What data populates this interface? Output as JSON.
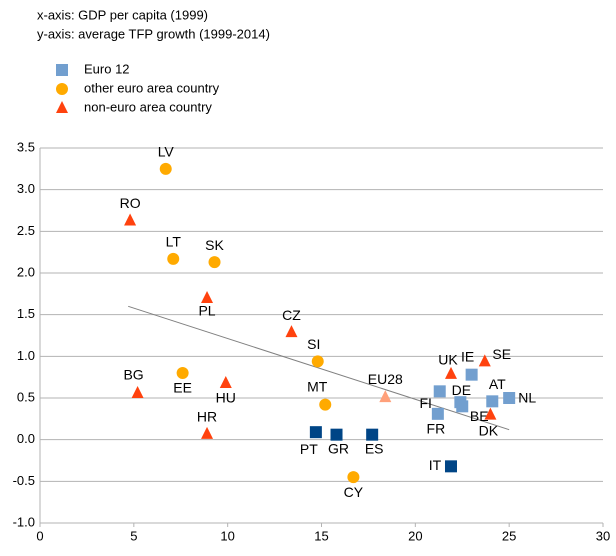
{
  "chart_data": {
    "type": "scatter",
    "notes": [
      "x-axis: GDP per capita (1999)",
      "y-axis: average TFP growth (1999-2014)"
    ],
    "series": [
      {
        "name": "Euro 12",
        "marker": "square",
        "color": "#729fcf",
        "labels": [
          "FI",
          "DE",
          "BE",
          "FR",
          "IE",
          "AT",
          "NL",
          "PT",
          "GR",
          "ES",
          "IT"
        ],
        "x": [
          21.3,
          22.4,
          22.5,
          21.2,
          23.0,
          24.1,
          25.0,
          14.7,
          15.8,
          17.7,
          21.9
        ],
        "values": [
          0.58,
          0.45,
          0.4,
          0.31,
          0.78,
          0.46,
          0.5,
          0.09,
          0.06,
          0.06,
          -0.32
        ],
        "colors": [
          "#729fcf",
          "#729fcf",
          "#729fcf",
          "#729fcf",
          "#729fcf",
          "#729fcf",
          "#729fcf",
          "#004586",
          "#004586",
          "#004586",
          "#004586"
        ]
      },
      {
        "name": "other euro area country",
        "marker": "circle",
        "color": "#ffaa00",
        "labels": [
          "LV",
          "LT",
          "SK",
          "SI",
          "EE",
          "MT",
          "CY"
        ],
        "x": [
          6.7,
          7.1,
          9.3,
          14.8,
          7.6,
          15.2,
          16.7
        ],
        "values": [
          3.25,
          2.17,
          2.13,
          0.94,
          0.8,
          0.42,
          -0.45
        ]
      },
      {
        "name": "non-euro area country",
        "marker": "triangle",
        "color": "#ff420e",
        "labels": [
          "RO",
          "PL",
          "CZ",
          "BG",
          "HU",
          "HR",
          "UK",
          "SE",
          "DK",
          "EU28"
        ],
        "x": [
          4.8,
          8.9,
          13.4,
          5.2,
          9.9,
          8.9,
          21.9,
          23.7,
          24.0,
          18.4
        ],
        "values": [
          2.63,
          1.7,
          1.29,
          0.56,
          0.68,
          0.07,
          0.79,
          0.94,
          0.3,
          0.51
        ],
        "colors": [
          "#ff420e",
          "#ff420e",
          "#ff420e",
          "#ff420e",
          "#ff420e",
          "#ff420e",
          "#ff420e",
          "#ff420e",
          "#ff420e",
          "#ffa07a"
        ]
      }
    ],
    "trendline": {
      "x": [
        4.7,
        25.0
      ],
      "values": [
        1.6,
        0.12
      ],
      "color": "#808080"
    },
    "xlim": [
      0,
      30
    ],
    "xticks": [
      0,
      5,
      10,
      15,
      20,
      25,
      30
    ],
    "ylim": [
      -1,
      3.5
    ],
    "yticks": [
      {
        "value": -1,
        "label": "-1.0"
      },
      -0.5,
      {
        "value": 0,
        "label": "0.0"
      },
      0.5,
      {
        "value": 1,
        "label": "1.0"
      },
      1.5,
      {
        "value": 2,
        "label": "2.0"
      },
      2.5,
      {
        "value": 3,
        "label": "3.0"
      },
      3.5
    ],
    "grid": true
  }
}
